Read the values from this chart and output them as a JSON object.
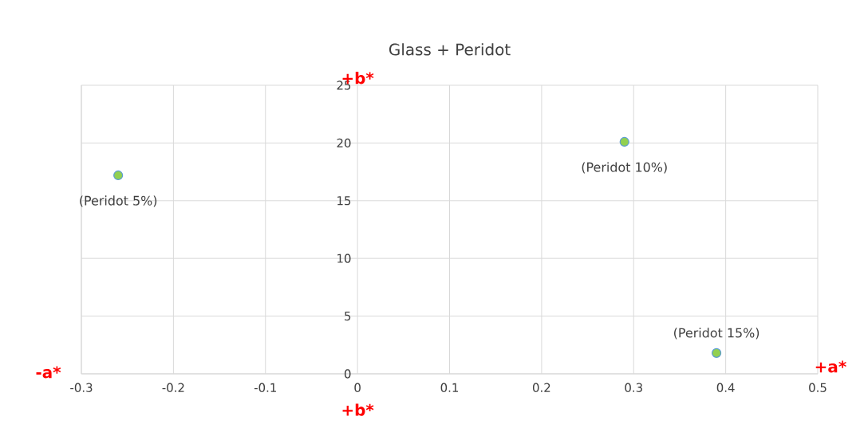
{
  "chart_data": {
    "type": "scatter",
    "title": "Glass + Peridot",
    "x": [
      -0.26,
      0.29,
      0.39
    ],
    "values": [
      17.2,
      20.1,
      1.8
    ],
    "color": "#92d050",
    "marker": "circle",
    "xlim": [
      -0.3,
      0.5
    ],
    "xticks": [
      -0.3,
      -0.2,
      -0.1,
      0,
      0.1,
      0.2,
      0.3,
      0.4,
      0.5
    ],
    "ylim": [
      0,
      25
    ],
    "yticks": [
      0,
      5,
      10,
      15,
      20,
      25
    ],
    "grid": true,
    "annotations": [
      {
        "text": "(Peridot 5%)",
        "x": -0.26,
        "y": 17.2
      },
      {
        "text": "(Peridot 10%)",
        "x": 0.29,
        "y": 20.1
      },
      {
        "text": "(Peridot 15%)",
        "x": 0.39,
        "y": 1.8
      },
      "+b*",
      "-a*",
      "+a*",
      "+b*"
    ]
  }
}
